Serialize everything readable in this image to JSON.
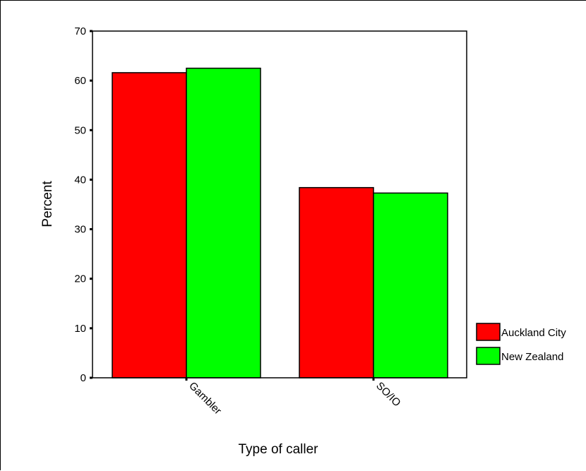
{
  "chart_data": {
    "type": "bar",
    "title": "",
    "xlabel": "Type of caller",
    "ylabel": "Percent",
    "ylim": [
      0,
      70
    ],
    "yticks": [
      0,
      10,
      20,
      30,
      40,
      50,
      60,
      70
    ],
    "categories": [
      "Gambler",
      "SO/IO"
    ],
    "series": [
      {
        "name": "Auckland City",
        "values": [
          61.6,
          38.4
        ],
        "color": "#ff0000"
      },
      {
        "name": "New Zealand",
        "values": [
          62.5,
          37.3
        ],
        "color": "#00ff00"
      }
    ],
    "grid": false,
    "legend_position": "right"
  }
}
